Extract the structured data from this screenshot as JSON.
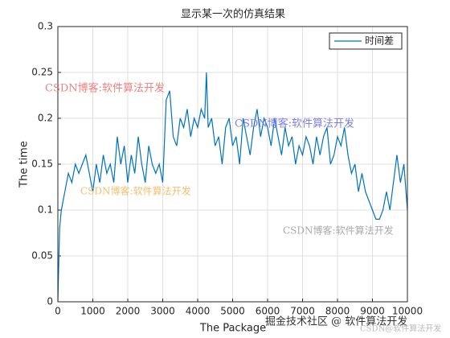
{
  "chart_data": {
    "type": "line",
    "title": "显示某一次的仿真结果",
    "xlabel": "The Package",
    "ylabel": "The time",
    "x": [
      0,
      50,
      100,
      200,
      300,
      400,
      500,
      600,
      700,
      800,
      900,
      1000,
      1100,
      1200,
      1300,
      1400,
      1500,
      1600,
      1700,
      1800,
      1900,
      2000,
      2100,
      2200,
      2300,
      2400,
      2500,
      2600,
      2700,
      2800,
      2900,
      3000,
      3100,
      3200,
      3300,
      3400,
      3500,
      3600,
      3700,
      3800,
      3900,
      4000,
      4100,
      4200,
      4250,
      4300,
      4400,
      4500,
      4600,
      4700,
      4800,
      4900,
      5000,
      5100,
      5200,
      5300,
      5400,
      5500,
      5600,
      5700,
      5800,
      5900,
      6000,
      6100,
      6200,
      6300,
      6400,
      6500,
      6600,
      6700,
      6800,
      6900,
      7000,
      7100,
      7200,
      7300,
      7400,
      7500,
      7600,
      7700,
      7800,
      7900,
      8000,
      8100,
      8200,
      8300,
      8400,
      8500,
      8600,
      8700,
      8800,
      8900,
      9000,
      9100,
      9200,
      9300,
      9400,
      9500,
      9600,
      9700,
      9800,
      9900,
      10000
    ],
    "series": [
      {
        "name": "时间差",
        "color": "#0072bd",
        "values": [
          0,
          0.08,
          0.1,
          0.12,
          0.14,
          0.13,
          0.15,
          0.14,
          0.15,
          0.16,
          0.14,
          0.12,
          0.15,
          0.13,
          0.16,
          0.14,
          0.15,
          0.13,
          0.18,
          0.15,
          0.17,
          0.13,
          0.16,
          0.14,
          0.18,
          0.15,
          0.13,
          0.17,
          0.15,
          0.14,
          0.15,
          0.13,
          0.22,
          0.23,
          0.18,
          0.17,
          0.2,
          0.19,
          0.21,
          0.18,
          0.2,
          0.19,
          0.21,
          0.2,
          0.25,
          0.19,
          0.2,
          0.17,
          0.18,
          0.15,
          0.19,
          0.2,
          0.17,
          0.18,
          0.15,
          0.2,
          0.18,
          0.16,
          0.19,
          0.21,
          0.18,
          0.2,
          0.19,
          0.17,
          0.2,
          0.18,
          0.16,
          0.19,
          0.17,
          0.18,
          0.15,
          0.17,
          0.16,
          0.18,
          0.17,
          0.15,
          0.18,
          0.16,
          0.18,
          0.19,
          0.15,
          0.16,
          0.18,
          0.17,
          0.19,
          0.16,
          0.14,
          0.15,
          0.12,
          0.14,
          0.12,
          0.11,
          0.1,
          0.09,
          0.09,
          0.1,
          0.12,
          0.1,
          0.13,
          0.16,
          0.13,
          0.15,
          0.1
        ]
      }
    ],
    "xlim": [
      0,
      10000
    ],
    "xticks": [
      0,
      1000,
      2000,
      3000,
      4000,
      5000,
      6000,
      7000,
      8000,
      9000,
      10000
    ],
    "ylim": [
      0,
      0.3
    ],
    "yticks": [
      0,
      0.05,
      0.1,
      0.15,
      0.2,
      0.25,
      0.3
    ],
    "grid": true,
    "legend": "northeast",
    "annotations": [
      "CSDN博客:软件算法开发",
      "CSDN博客:软件算法开发",
      "CSDN博客:软件算法开发",
      "CSDN博客:软件算法开发",
      "掘金技术社区 @ 软件算法开发",
      "CSDN@软件算法开发"
    ]
  }
}
